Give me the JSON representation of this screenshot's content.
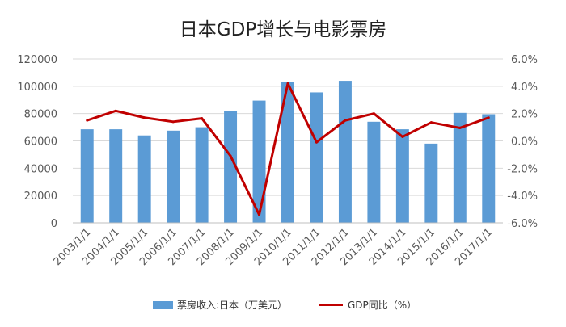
{
  "chart_data": {
    "type": "bar+line",
    "title": "日本GDP增长与电影票房",
    "categories": [
      "2003/1/1",
      "2004/1/1",
      "2005/1/1",
      "2006/1/1",
      "2007/1/1",
      "2008/1/1",
      "2009/1/1",
      "2010/1/1",
      "2011/1/1",
      "2012/1/1",
      "2013/1/1",
      "2014/1/1",
      "2015/1/1",
      "2016/1/1",
      "2017/1/1"
    ],
    "series": [
      {
        "name": "票房收入:日本（万美元）",
        "type": "bar",
        "axis": "left",
        "color": "#5b9bd5",
        "values": [
          68500,
          68500,
          64000,
          67500,
          70000,
          82000,
          89500,
          103000,
          95500,
          104000,
          74000,
          68500,
          58000,
          80500,
          79500
        ]
      },
      {
        "name": "GDP同比（%）",
        "type": "line",
        "axis": "right",
        "color": "#c00000",
        "values": [
          1.5,
          2.2,
          1.7,
          1.4,
          1.65,
          -1.1,
          -5.4,
          4.2,
          -0.1,
          1.5,
          2.0,
          0.3,
          1.35,
          0.95,
          1.7
        ]
      }
    ],
    "y_left": {
      "min": 0,
      "max": 120000,
      "ticks": [
        "0",
        "20000",
        "40000",
        "60000",
        "80000",
        "100000",
        "120000"
      ]
    },
    "y_right": {
      "min": -6,
      "max": 6,
      "ticks": [
        "-6.0%",
        "-4.0%",
        "-2.0%",
        "0.0%",
        "2.0%",
        "4.0%",
        "6.0%"
      ]
    },
    "gridlines": true,
    "legend": {
      "position": "bottom",
      "bar_label": "票房收入:日本（万美元）",
      "line_label": "GDP同比（%）"
    }
  }
}
